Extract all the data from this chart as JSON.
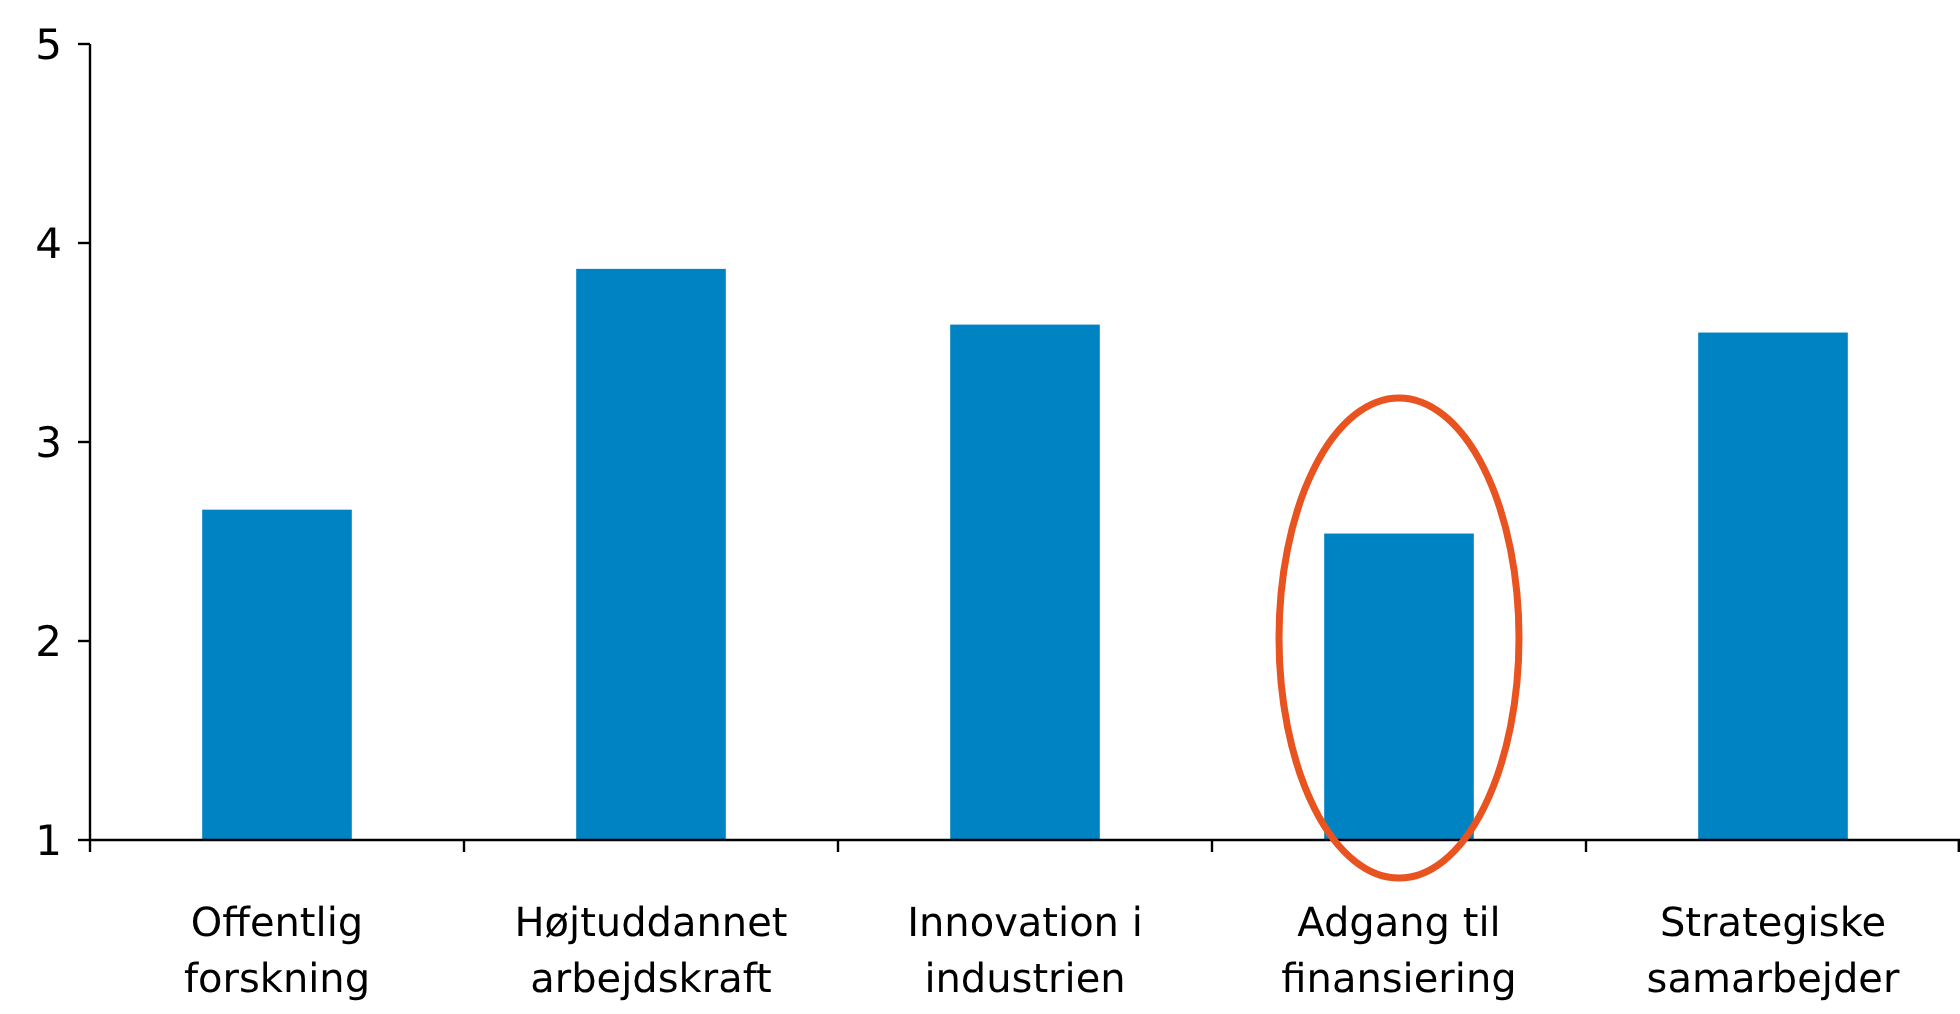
{
  "chart_data": {
    "type": "bar",
    "categories": [
      "Offentlig forskning",
      "Højtuddannet arbejdskraft",
      "Innovation i industrien",
      "Adgang til finansiering",
      "Strategiske samarbejder"
    ],
    "values": [
      2.66,
      3.87,
      3.59,
      2.54,
      3.55
    ],
    "color": "#0083c3",
    "ylim": [
      1,
      5
    ],
    "yticks": [
      1,
      2,
      3,
      4,
      5
    ],
    "grid": false
  }
}
